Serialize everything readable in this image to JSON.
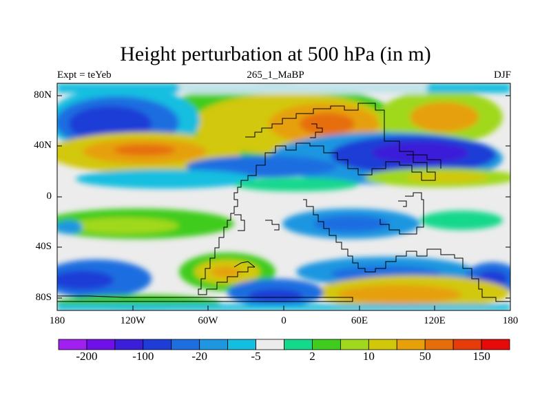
{
  "title": "Height perturbation at 500 hPa (in m)",
  "subtitle_left": "Expt = teYeb",
  "subtitle_center": "265_1_MaBP",
  "subtitle_right": "DJF",
  "y_ticks": [
    "80N",
    "40N",
    "0",
    "40S",
    "80S"
  ],
  "x_ticks": [
    "180",
    "120W",
    "60W",
    "0",
    "60E",
    "120E",
    "180"
  ],
  "colorbar": {
    "colors": [
      "#a020f0",
      "#7010e8",
      "#3a1ed8",
      "#1e3cd6",
      "#1e6ee0",
      "#1e96e0",
      "#14bee0",
      "#ececec",
      "#14d88c",
      "#40cc1e",
      "#a0d81e",
      "#d2c80a",
      "#e6a00a",
      "#e66e0a",
      "#e63c0a",
      "#e60a0a"
    ],
    "labels": [
      "-200",
      "-100",
      "-20",
      "-5",
      "2",
      "10",
      "50",
      "150"
    ]
  },
  "chart_data": {
    "type": "heatmap",
    "title": "Height perturbation at 500 hPa (in m)",
    "variable": "500 hPa geopotential height perturbation",
    "units": "m",
    "experiment": "teYeb",
    "period": "265_1_MaBP",
    "season": "DJF",
    "x_range": [
      -180,
      180
    ],
    "y_range": [
      -90,
      90
    ],
    "x_ticks": [
      -180,
      -120,
      -60,
      0,
      60,
      120,
      180
    ],
    "y_ticks": [
      80,
      40,
      0,
      -40,
      -80
    ],
    "colorbar_label_values": [
      -200,
      -100,
      -20,
      -5,
      2,
      10,
      50,
      150
    ],
    "features": [
      {
        "name": "high",
        "lon": 45,
        "lat": 62,
        "value": 150
      },
      {
        "name": "high",
        "lon": 140,
        "lat": 62,
        "value": 100
      },
      {
        "name": "high",
        "lon": -145,
        "lat": 35,
        "value": 120
      },
      {
        "name": "high",
        "lon": -35,
        "lat": -60,
        "value": 120
      },
      {
        "name": "high",
        "lon": 70,
        "lat": -70,
        "value": 60
      },
      {
        "name": "low",
        "lon": -140,
        "lat": 62,
        "value": -120
      },
      {
        "name": "low",
        "lon": 105,
        "lat": 35,
        "value": -150
      },
      {
        "name": "low",
        "lon": 95,
        "lat": -30,
        "value": -30
      },
      {
        "name": "low",
        "lon": -160,
        "lat": -65,
        "value": -100
      },
      {
        "name": "low",
        "lon": 165,
        "lat": -68,
        "value": -100
      },
      {
        "name": "low",
        "lon": 10,
        "lat": -80,
        "value": -60
      }
    ]
  }
}
